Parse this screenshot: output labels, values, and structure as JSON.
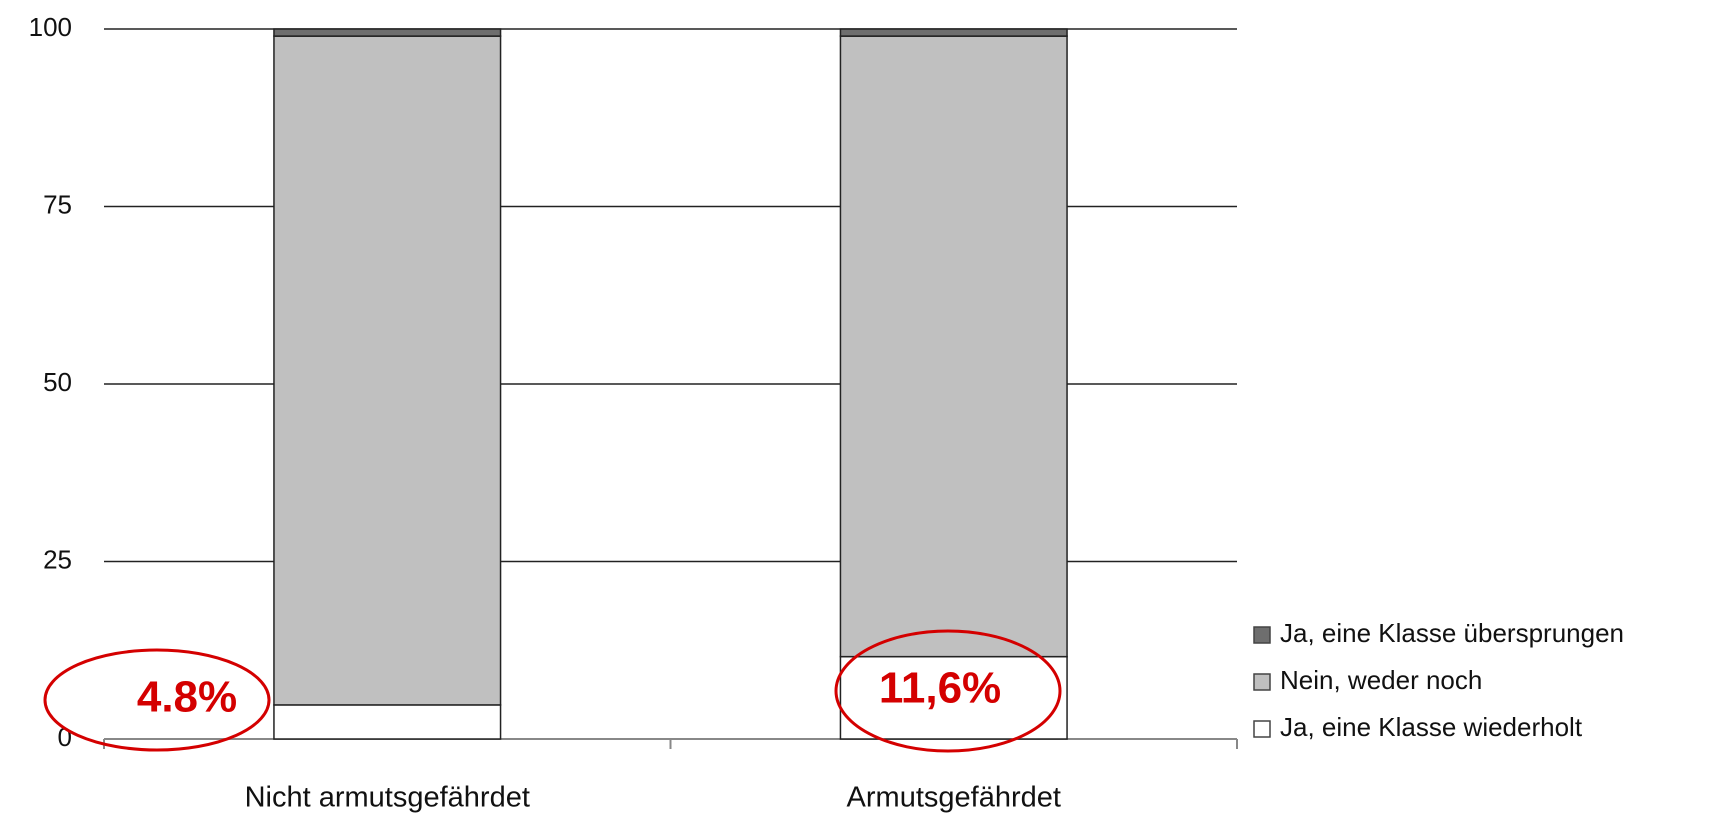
{
  "chart_data": {
    "type": "stacked_bar",
    "categories": [
      "Nicht armutsgefährdet",
      "Armutsgefährdet"
    ],
    "series": [
      {
        "name": "Ja, eine Klasse wiederholt",
        "color": "#ffffff",
        "values": [
          4.8,
          11.6
        ],
        "value_labels": [
          "4.8%",
          "11,6%"
        ]
      },
      {
        "name": "Nein, weder noch",
        "color": "#c0c0c0",
        "values": [
          94.2,
          87.4
        ]
      },
      {
        "name": "Ja, eine Klasse übersprungen",
        "color": "#6e6e6e",
        "values": [
          1,
          1
        ]
      }
    ],
    "ylim": [
      0,
      100
    ],
    "yticks": [
      0,
      25,
      50,
      75,
      100
    ],
    "grid": true,
    "legend": "right",
    "annotation_color": "#d40000"
  }
}
